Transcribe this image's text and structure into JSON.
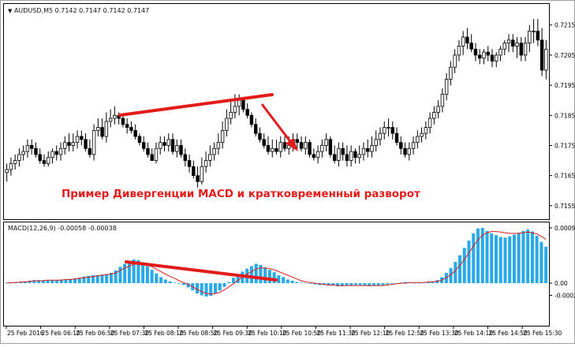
{
  "window": {
    "symbol": "AUDUSD,M5",
    "ohlc": "0.7142 0.7147 0.7142 0.7147"
  },
  "annotation": "Пример Дивергенции MACD и кратковременный разворот",
  "colors": {
    "accent": "#e21b1b",
    "histogram": "#29a9ea",
    "signal": "#e21b1b",
    "candle": "#000000"
  },
  "chart_data": [
    {
      "type": "candlestick",
      "title": "AUDUSD,M5",
      "subtitle": "0.7142 0.7147 0.7142 0.7147",
      "ylim": [
        0.71505,
        0.7222
      ],
      "yticks": [
        "0.7215",
        "0.7205",
        "0.7195",
        "0.7185",
        "0.7175",
        "0.7165",
        "0.7155"
      ],
      "open": [
        0.7166,
        0.7167,
        0.7169,
        0.717,
        0.7172,
        0.7173,
        0.7175,
        0.7174,
        0.7172,
        0.717,
        0.7169,
        0.7171,
        0.7173,
        0.7172,
        0.7174,
        0.7176,
        0.7175,
        0.7176,
        0.7178,
        0.7177,
        0.7174,
        0.7172,
        0.718,
        0.7181,
        0.7178,
        0.7183,
        0.7184,
        0.7185,
        0.7184,
        0.7182,
        0.7181,
        0.718,
        0.7178,
        0.7176,
        0.7174,
        0.7172,
        0.717,
        0.7174,
        0.7176,
        0.7175,
        0.7177,
        0.7173,
        0.7175,
        0.7172,
        0.717,
        0.7168,
        0.7165,
        0.7163,
        0.7168,
        0.717,
        0.7172,
        0.7174,
        0.7176,
        0.718,
        0.7184,
        0.7186,
        0.7188,
        0.719,
        0.7187,
        0.7185,
        0.7182,
        0.7179,
        0.7177,
        0.7175,
        0.7173,
        0.7174,
        0.7173,
        0.7176,
        0.7174,
        0.7175,
        0.7177,
        0.7176,
        0.7174,
        0.7176,
        0.7172,
        0.7171,
        0.7173,
        0.7175,
        0.7177,
        0.7172,
        0.717,
        0.7174,
        0.7172,
        0.717,
        0.7173,
        0.7171,
        0.7172,
        0.7174,
        0.7173,
        0.7175,
        0.7177,
        0.7179,
        0.7181,
        0.7181,
        0.7179,
        0.7176,
        0.7174,
        0.7172,
        0.7174,
        0.7176,
        0.7178,
        0.7179,
        0.7181,
        0.7184,
        0.7186,
        0.7188,
        0.7192,
        0.7197,
        0.7201,
        0.7205,
        0.7208,
        0.7211,
        0.7209,
        0.7207,
        0.7205,
        0.7204,
        0.7206,
        0.7205,
        0.7203,
        0.7205,
        0.7207,
        0.7209,
        0.721,
        0.7208,
        0.7209,
        0.7205,
        0.7209,
        0.7213,
        0.7213,
        0.721,
        0.72
      ],
      "high": [
        0.7169,
        0.7171,
        0.7172,
        0.7174,
        0.7175,
        0.7177,
        0.7177,
        0.7176,
        0.7174,
        0.7172,
        0.7173,
        0.7174,
        0.7175,
        0.7176,
        0.7178,
        0.7179,
        0.7179,
        0.718,
        0.718,
        0.7179,
        0.7177,
        0.7182,
        0.7184,
        0.7184,
        0.7186,
        0.7187,
        0.7188,
        0.7186,
        0.7185,
        0.7184,
        0.7183,
        0.7182,
        0.7179,
        0.7178,
        0.7176,
        0.7174,
        0.7176,
        0.7178,
        0.7178,
        0.7179,
        0.7179,
        0.7177,
        0.7177,
        0.7174,
        0.7172,
        0.717,
        0.7168,
        0.7171,
        0.7173,
        0.7175,
        0.7176,
        0.7179,
        0.7183,
        0.7187,
        0.719,
        0.7192,
        0.7192,
        0.7191,
        0.7189,
        0.7186,
        0.7184,
        0.7181,
        0.7179,
        0.7178,
        0.7177,
        0.7177,
        0.7178,
        0.7178,
        0.7178,
        0.7179,
        0.7179,
        0.7178,
        0.7178,
        0.7177,
        0.7174,
        0.7175,
        0.7177,
        0.7179,
        0.7178,
        0.7175,
        0.7176,
        0.7176,
        0.7175,
        0.7175,
        0.7174,
        0.7175,
        0.7176,
        0.7177,
        0.7178,
        0.718,
        0.7181,
        0.7183,
        0.7184,
        0.7183,
        0.7181,
        0.7178,
        0.7176,
        0.7176,
        0.7178,
        0.718,
        0.7181,
        0.7183,
        0.7186,
        0.7188,
        0.719,
        0.7194,
        0.7199,
        0.7203,
        0.7207,
        0.721,
        0.7213,
        0.7214,
        0.7212,
        0.7209,
        0.7207,
        0.7207,
        0.7208,
        0.7207,
        0.7206,
        0.7208,
        0.721,
        0.7212,
        0.7212,
        0.7211,
        0.7211,
        0.7211,
        0.7215,
        0.7217,
        0.7217,
        0.7214,
        0.721
      ],
      "low": [
        0.7163,
        0.7165,
        0.7167,
        0.7168,
        0.717,
        0.7171,
        0.7172,
        0.7171,
        0.7169,
        0.7168,
        0.7168,
        0.7169,
        0.717,
        0.717,
        0.7172,
        0.7173,
        0.7173,
        0.7174,
        0.7175,
        0.7173,
        0.7171,
        0.717,
        0.7178,
        0.7177,
        0.7176,
        0.7181,
        0.7182,
        0.7182,
        0.7181,
        0.7179,
        0.7179,
        0.7177,
        0.7175,
        0.7173,
        0.7171,
        0.717,
        0.7169,
        0.7172,
        0.7173,
        0.7173,
        0.7172,
        0.7171,
        0.7171,
        0.7168,
        0.7166,
        0.7164,
        0.7161,
        0.7162,
        0.7166,
        0.7168,
        0.717,
        0.7172,
        0.7174,
        0.7178,
        0.7182,
        0.7184,
        0.7185,
        0.7186,
        0.7184,
        0.7181,
        0.7178,
        0.7176,
        0.7174,
        0.7172,
        0.7171,
        0.7172,
        0.7171,
        0.7173,
        0.7172,
        0.7173,
        0.7174,
        0.7173,
        0.7172,
        0.7171,
        0.717,
        0.7169,
        0.7171,
        0.7173,
        0.7171,
        0.7169,
        0.7168,
        0.717,
        0.7168,
        0.7168,
        0.7169,
        0.7169,
        0.717,
        0.7171,
        0.7171,
        0.7173,
        0.7175,
        0.7177,
        0.7178,
        0.7177,
        0.7175,
        0.7172,
        0.7171,
        0.717,
        0.7172,
        0.7174,
        0.7176,
        0.7177,
        0.7179,
        0.7182,
        0.7184,
        0.7186,
        0.719,
        0.7195,
        0.7199,
        0.7203,
        0.7205,
        0.7207,
        0.7206,
        0.7203,
        0.7202,
        0.7202,
        0.7203,
        0.7201,
        0.7201,
        0.7203,
        0.7205,
        0.7206,
        0.7206,
        0.7204,
        0.7203,
        0.7203,
        0.7206,
        0.7209,
        0.7208,
        0.7198,
        0.7197
      ],
      "close": [
        0.7167,
        0.7169,
        0.717,
        0.7172,
        0.7173,
        0.7175,
        0.7174,
        0.7172,
        0.717,
        0.7169,
        0.7171,
        0.7173,
        0.7172,
        0.7174,
        0.7176,
        0.7175,
        0.7176,
        0.7178,
        0.7177,
        0.7174,
        0.7172,
        0.718,
        0.7181,
        0.7178,
        0.7183,
        0.7184,
        0.7185,
        0.7184,
        0.7182,
        0.7181,
        0.718,
        0.7178,
        0.7176,
        0.7174,
        0.7172,
        0.717,
        0.7174,
        0.7176,
        0.7175,
        0.7177,
        0.7173,
        0.7175,
        0.7172,
        0.717,
        0.7168,
        0.7165,
        0.7163,
        0.7168,
        0.717,
        0.7172,
        0.7174,
        0.7176,
        0.718,
        0.7184,
        0.7186,
        0.7188,
        0.719,
        0.7187,
        0.7185,
        0.7182,
        0.7179,
        0.7177,
        0.7175,
        0.7173,
        0.7174,
        0.7173,
        0.7176,
        0.7174,
        0.7175,
        0.7177,
        0.7176,
        0.7174,
        0.7176,
        0.7172,
        0.7171,
        0.7173,
        0.7175,
        0.7177,
        0.7172,
        0.717,
        0.7174,
        0.7172,
        0.717,
        0.7173,
        0.7171,
        0.7172,
        0.7174,
        0.7173,
        0.7175,
        0.7177,
        0.7179,
        0.7181,
        0.7181,
        0.7179,
        0.7176,
        0.7174,
        0.7172,
        0.7174,
        0.7176,
        0.7178,
        0.7179,
        0.7181,
        0.7184,
        0.7186,
        0.7188,
        0.7192,
        0.7197,
        0.7201,
        0.7205,
        0.7208,
        0.7211,
        0.7209,
        0.7207,
        0.7205,
        0.7204,
        0.7206,
        0.7205,
        0.7203,
        0.7205,
        0.7207,
        0.7209,
        0.721,
        0.7208,
        0.7209,
        0.7205,
        0.7209,
        0.7213,
        0.7213,
        0.721,
        0.72,
        0.7207
      ]
    },
    {
      "type": "bar",
      "title": "MACD(12,26,9) -0.00058 -0.00038",
      "ylim": [
        -0.0007,
        0.001
      ],
      "yticks": [
        "0.00091",
        "0.00",
        "-0.00020"
      ],
      "histogram": [
        1e-05,
        1e-05,
        2e-05,
        2e-05,
        3e-05,
        4e-05,
        5e-05,
        5e-05,
        5e-05,
        5e-05,
        5e-05,
        5e-05,
        6e-05,
        6e-05,
        7e-05,
        8e-05,
        9e-05,
        0.00011,
        0.00012,
        0.00013,
        0.00013,
        0.00014,
        0.00015,
        0.00017,
        0.00021,
        0.00027,
        0.00032,
        0.00036,
        0.00039,
        0.00038,
        0.00034,
        0.00028,
        0.00022,
        0.00016,
        0.0001,
        6e-05,
        3e-05,
        1e-05,
        -1e-05,
        -3e-05,
        -7e-05,
        -0.00012,
        -0.00017,
        -0.0002,
        -0.00022,
        -0.00021,
        -0.00017,
        -0.00012,
        -6e-05,
        2e-05,
        9e-05,
        0.00014,
        0.00019,
        0.00024,
        0.00028,
        0.00032,
        0.0003,
        0.00026,
        0.00022,
        0.00018,
        0.00013,
        0.0001,
        6e-05,
        4e-05,
        2e-05,
        1e-05,
        0.0,
        -1e-05,
        -2e-05,
        -3e-05,
        -3e-05,
        -4e-05,
        -4e-05,
        -5e-05,
        -5e-05,
        -4e-05,
        -4e-05,
        -3e-05,
        -3e-05,
        -4e-05,
        -5e-05,
        -4e-05,
        -4e-05,
        -3e-05,
        -2e-05,
        -1e-05,
        0.0,
        1e-05,
        2e-05,
        1e-05,
        0.0,
        0.0,
        1e-05,
        2e-05,
        3e-05,
        5e-05,
        0.0001,
        0.00017,
        0.00025,
        0.00035,
        0.00046,
        0.00058,
        0.0007,
        0.00082,
        0.0009,
        0.00091,
        0.00086,
        0.00082,
        0.00079,
        0.00076,
        0.00075,
        0.00077,
        0.0008,
        0.00083,
        0.00086,
        0.00088,
        0.00085,
        0.00078,
        0.00068,
        0.0006
      ],
      "signal": [
        0.0,
        1e-05,
        1e-05,
        2e-05,
        2e-05,
        3e-05,
        4e-05,
        4e-05,
        4e-05,
        5e-05,
        5e-05,
        5e-05,
        5e-05,
        6e-05,
        6e-05,
        7e-05,
        8e-05,
        9e-05,
        0.0001,
        0.00011,
        0.00012,
        0.00013,
        0.00014,
        0.00015,
        0.00017,
        0.00021,
        0.00025,
        0.00028,
        0.00031,
        0.00032,
        0.00032,
        0.0003,
        0.00027,
        0.00023,
        0.00019,
        0.00015,
        0.00011,
        8e-05,
        4e-05,
        1e-05,
        -2e-05,
        -6e-05,
        -0.0001,
        -0.00014,
        -0.00017,
        -0.00018,
        -0.00017,
        -0.00015,
        -0.00011,
        -6e-05,
        -1e-05,
        5e-05,
        0.0001,
        0.00015,
        0.00019,
        0.00023,
        0.00025,
        0.00025,
        0.00024,
        0.00022,
        0.00019,
        0.00016,
        0.00013,
        0.0001,
        7e-05,
        4e-05,
        2e-05,
        1e-05,
        0.0,
        -1e-05,
        -2e-05,
        -3e-05,
        -3e-05,
        -4e-05,
        -4e-05,
        -4e-05,
        -4e-05,
        -4e-05,
        -4e-05,
        -4e-05,
        -4e-05,
        -4e-05,
        -4e-05,
        -4e-05,
        -3e-05,
        -2e-05,
        -1e-05,
        0.0,
        0.0,
        1e-05,
        1e-05,
        1e-05,
        1e-05,
        2e-05,
        2e-05,
        3e-05,
        5e-05,
        9e-05,
        0.00014,
        0.00021,
        0.00029,
        0.00039,
        0.0005,
        0.00061,
        0.00071,
        0.00079,
        0.00083,
        0.00085,
        0.00085,
        0.00084,
        0.00083,
        0.00082,
        0.00082,
        0.00082,
        0.00083,
        0.00084,
        0.00083,
        0.00081,
        0.00077,
        0.00072
      ]
    }
  ],
  "x_axis": {
    "ticks": [
      "25 Feb 2016",
      "25 Feb 06:10",
      "25 Feb 06:50",
      "25 Feb 07:30",
      "25 Feb 08:10",
      "25 Feb 08:50",
      "25 Feb 09:30",
      "25 Feb 10:10",
      "25 Feb 10:50",
      "25 Feb 11:30",
      "25 Feb 12:10",
      "25 Feb 12:50",
      "25 Feb 13:30",
      "25 Feb 14:10",
      "25 Feb 14:50",
      "25 Feb 15:30"
    ]
  }
}
